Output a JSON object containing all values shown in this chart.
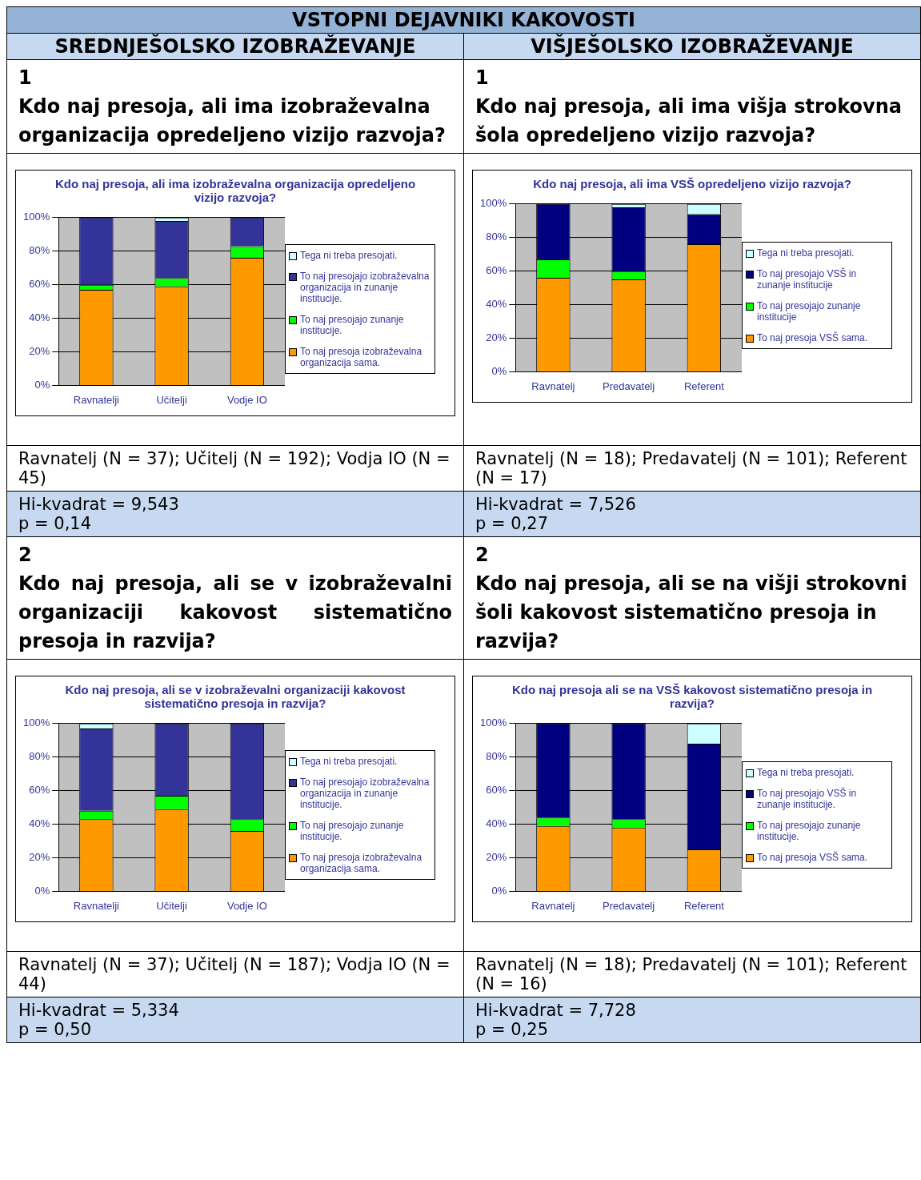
{
  "chart_data": [
    {
      "type": "bar",
      "stacked": true,
      "title": "Kdo naj presoja, ali ima izobraževalna organizacija opredeljeno vizijo razvoja?",
      "categories": [
        "Ravnatelji",
        "Učitelji",
        "Vodje IO"
      ],
      "series": [
        {
          "name": "To naj presoja izobraževalna organizacija sama.",
          "color": "#ff9900",
          "values": [
            57,
            59,
            76
          ]
        },
        {
          "name": "To naj presojajo zunanje institucije.",
          "color": "#00ff00",
          "values": [
            3,
            5,
            7
          ]
        },
        {
          "name": "To naj presojajo izobraževalna organizacija in zunanje institucije.",
          "color": "#333399",
          "values": [
            40,
            34,
            17
          ]
        },
        {
          "name": "Tega ni treba presojati.",
          "color": "#ccffff",
          "values": [
            0,
            2,
            0
          ]
        }
      ],
      "ylim": [
        0,
        100
      ],
      "yticks": [
        {
          "value": 0,
          "label": "0%"
        },
        {
          "value": 20,
          "label": "20%"
        },
        {
          "value": 40,
          "label": "40%"
        },
        {
          "value": 60,
          "label": "60%"
        },
        {
          "value": 80,
          "label": "80%"
        },
        {
          "value": 100,
          "label": "100%"
        }
      ],
      "grid": "y",
      "legend": "right",
      "annotations": [
        "VSTOPNI DEJAVNIKI KAKOVOSTI",
        "SREDNJEŠOLSKO IZOBRAŽEVANJE",
        "1",
        "Kdo naj presoja, ali ima izobraževalna organizacija opredeljeno vizijo razvoja?",
        "Ravnatelj (N = 37); Učitelj (N = 192); Vodja IO (N = 45)",
        "Hi-kvadrat = 9,543",
        "p = 0,14"
      ]
    },
    {
      "type": "bar",
      "stacked": true,
      "title": "Kdo naj presoja, ali ima VSŠ opredeljeno vizijo razvoja?",
      "categories": [
        "Ravnatelj",
        "Predavatelj",
        "Referent"
      ],
      "series": [
        {
          "name": "To naj presoja VSŠ sama.",
          "color": "#ff9900",
          "values": [
            56,
            55,
            76
          ]
        },
        {
          "name": "To naj presojajo zunanje institucije",
          "color": "#00ff00",
          "values": [
            11,
            5,
            0
          ]
        },
        {
          "name": "To naj presojajo VSŠ in zunanje institucije",
          "color": "#000080",
          "values": [
            33,
            38,
            18
          ]
        },
        {
          "name": "Tega ni treba presojati.",
          "color": "#ccffff",
          "values": [
            0,
            2,
            6
          ]
        }
      ],
      "ylim": [
        0,
        100
      ],
      "yticks": [
        {
          "value": 0,
          "label": "0%"
        },
        {
          "value": 20,
          "label": "20%"
        },
        {
          "value": 40,
          "label": "40%"
        },
        {
          "value": 60,
          "label": "60%"
        },
        {
          "value": 80,
          "label": "80%"
        },
        {
          "value": 100,
          "label": "100%"
        }
      ],
      "grid": "y",
      "legend": "right",
      "annotations": [
        "VIŠJEŠOLSKO IZOBRAŽEVANJE",
        "1",
        "Kdo naj presoja, ali ima višja strokovna šola opredeljeno vizijo razvoja?",
        "Ravnatelj (N = 18); Predavatelj (N = 101); Referent (N = 17)",
        "Hi-kvadrat = 7,526",
        "p = 0,27"
      ]
    },
    {
      "type": "bar",
      "stacked": true,
      "title": "Kdo naj presoja, ali se v izobraževalni organizaciji kakovost sistematično presoja in razvija?",
      "categories": [
        "Ravnatelji",
        "Učitelji",
        "Vodje IO"
      ],
      "series": [
        {
          "name": "To naj presoja izobraževalna organizacija sama.",
          "color": "#ff9900",
          "values": [
            43,
            49,
            36
          ]
        },
        {
          "name": "To naj presojajo zunanje institucije.",
          "color": "#00ff00",
          "values": [
            5,
            8,
            7
          ]
        },
        {
          "name": "To naj presojajo izobraževalna organizacija in zunanje institucije.",
          "color": "#333399",
          "values": [
            49,
            43,
            57
          ]
        },
        {
          "name": "Tega ni treba presojati.",
          "color": "#ccffff",
          "values": [
            3,
            0,
            0
          ]
        }
      ],
      "ylim": [
        0,
        100
      ],
      "yticks": [
        {
          "value": 0,
          "label": "0%"
        },
        {
          "value": 20,
          "label": "20%"
        },
        {
          "value": 40,
          "label": "40%"
        },
        {
          "value": 60,
          "label": "60%"
        },
        {
          "value": 80,
          "label": "80%"
        },
        {
          "value": 100,
          "label": "100%"
        }
      ],
      "grid": "y",
      "legend": "right",
      "annotations": [
        "2",
        "Kdo naj presoja, ali se v izobraževalni organizaciji kakovost sistematično presoja in razvija?",
        "Ravnatelj (N = 37); Učitelj (N = 187); Vodja IO (N = 44)",
        "Hi-kvadrat = 5,334",
        "p = 0,50"
      ]
    },
    {
      "type": "bar",
      "stacked": true,
      "title": "Kdo naj presoja ali se na VSŠ kakovost sistematično presoja in razvija?",
      "categories": [
        "Ravnatelj",
        "Predavatelj",
        "Referent"
      ],
      "series": [
        {
          "name": "To naj presoja VSŠ sama.",
          "color": "#ff9900",
          "values": [
            39,
            38,
            25
          ]
        },
        {
          "name": "To naj presojajo zunanje institucije.",
          "color": "#00ff00",
          "values": [
            5,
            5,
            0
          ]
        },
        {
          "name": "To naj presojajo VSŠ in zunanje institucije.",
          "color": "#000080",
          "values": [
            56,
            57,
            63
          ]
        },
        {
          "name": "Tega ni treba presojati.",
          "color": "#ccffff",
          "values": [
            0,
            0,
            12
          ]
        }
      ],
      "ylim": [
        0,
        100
      ],
      "yticks": [
        {
          "value": 0,
          "label": "0%"
        },
        {
          "value": 20,
          "label": "20%"
        },
        {
          "value": 40,
          "label": "40%"
        },
        {
          "value": 60,
          "label": "60%"
        },
        {
          "value": 80,
          "label": "80%"
        },
        {
          "value": 100,
          "label": "100%"
        }
      ],
      "grid": "y",
      "legend": "right",
      "annotations": [
        "2",
        "Kdo naj presoja, ali se na višji strokovni šoli kakovost sistematično presoja in razvija?",
        "Ravnatelj (N = 18); Predavatelj (N = 101); Referent (N = 16)",
        "Hi-kvadrat = 7,728",
        "p = 0,25"
      ]
    }
  ]
}
